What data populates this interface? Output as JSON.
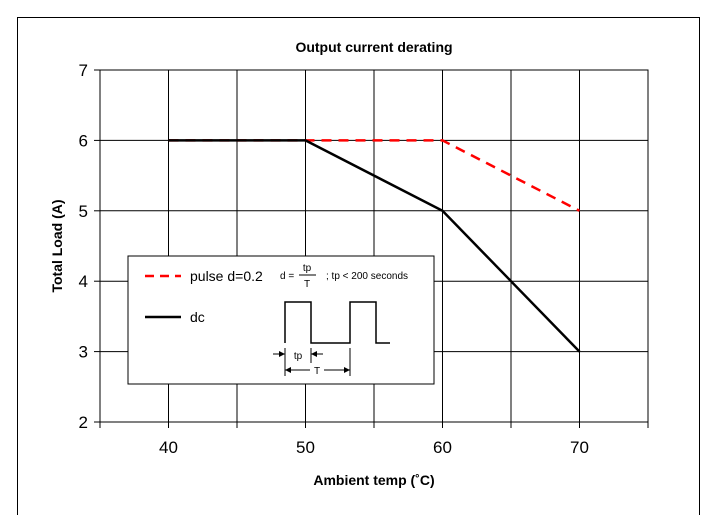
{
  "chart_data": {
    "type": "line",
    "title": "Output current derating",
    "xlabel": "Ambient temp (˚C)",
    "ylabel": "Total Load (A)",
    "xlim": [
      35,
      75
    ],
    "ylim": [
      2,
      7
    ],
    "xticks": [
      40,
      50,
      60,
      70
    ],
    "yticks": [
      2,
      3,
      4,
      5,
      6,
      7
    ],
    "grid": true,
    "series": [
      {
        "name": "pulse d=0.2",
        "color": "#ff0000",
        "dash": "dashed",
        "x": [
          40,
          50,
          60,
          70
        ],
        "y": [
          6,
          6,
          6,
          5
        ]
      },
      {
        "name": "dc",
        "color": "#000000",
        "dash": "solid",
        "x": [
          40,
          50,
          60,
          70
        ],
        "y": [
          6,
          6,
          5,
          3
        ]
      }
    ],
    "legend": {
      "placement": "bottom-left",
      "formula_d": "d =",
      "formula_num": "tp",
      "formula_den": "T",
      "formula_note": "; tp < 200 seconds",
      "diagram_tp": "tp",
      "diagram_T": "T"
    }
  }
}
